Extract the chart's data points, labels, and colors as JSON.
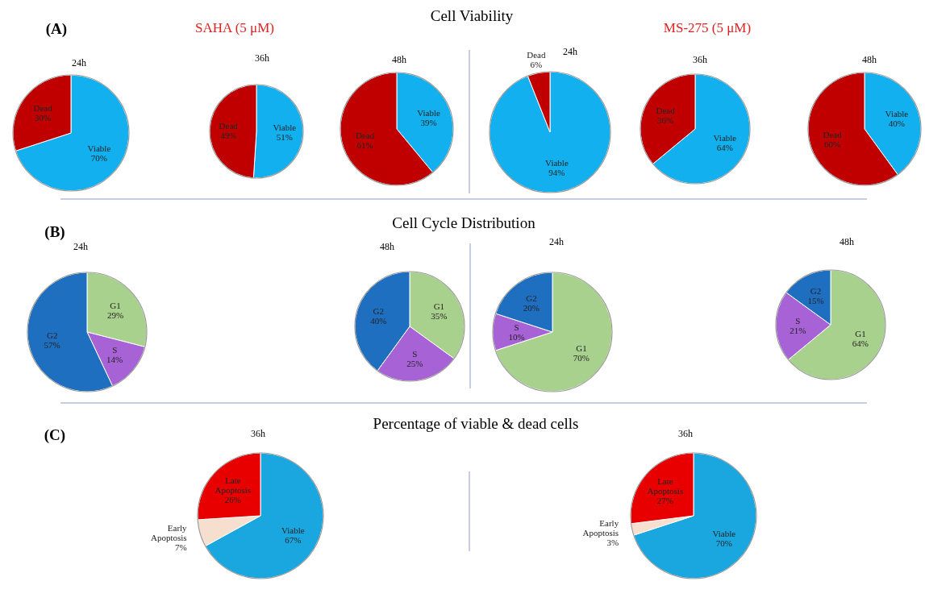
{
  "chart_data": [
    {
      "type": "pie",
      "title": "24h",
      "annotations": [
        "(A)",
        "SAHA (5 μM)",
        "Cell Viability"
      ],
      "categories": [
        "Viable",
        "Dead"
      ],
      "values": [
        70,
        30
      ],
      "value_labels": [
        "70%",
        "30%"
      ],
      "colors": [
        "#12b0ee",
        "#c00000"
      ]
    },
    {
      "type": "pie",
      "title": "36h",
      "categories": [
        "Viable",
        "Dead"
      ],
      "values": [
        51,
        49
      ],
      "value_labels": [
        "51%",
        "49%"
      ],
      "colors": [
        "#12b0ee",
        "#c00000"
      ]
    },
    {
      "type": "pie",
      "title": "48h",
      "categories": [
        "Viable",
        "Dead"
      ],
      "values": [
        39,
        61
      ],
      "value_labels": [
        "39%",
        "61%"
      ],
      "colors": [
        "#12b0ee",
        "#c00000"
      ]
    },
    {
      "type": "pie",
      "title": "24h",
      "annotations": [
        "MS-275 (5 μM)"
      ],
      "categories": [
        "Viable",
        "Dead"
      ],
      "values": [
        94,
        6
      ],
      "value_labels": [
        "94%",
        "6%"
      ],
      "colors": [
        "#12b0ee",
        "#c00000"
      ]
    },
    {
      "type": "pie",
      "title": "36h",
      "categories": [
        "Viable",
        "Dead"
      ],
      "values": [
        64,
        36
      ],
      "value_labels": [
        "64%",
        "36%"
      ],
      "colors": [
        "#12b0ee",
        "#c00000"
      ]
    },
    {
      "type": "pie",
      "title": "48h",
      "categories": [
        "Viable",
        "Dead"
      ],
      "values": [
        40,
        60
      ],
      "value_labels": [
        "40%",
        "60%"
      ],
      "colors": [
        "#12b0ee",
        "#c00000"
      ]
    },
    {
      "type": "pie",
      "title": "24h",
      "annotations": [
        "(B)",
        "Cell Cycle Distribution"
      ],
      "categories": [
        "G1",
        "S",
        "G2"
      ],
      "values": [
        29,
        14,
        57
      ],
      "value_labels": [
        "29%",
        "14%",
        "57%"
      ],
      "colors": [
        "#a9d18e",
        "#a763d6",
        "#1f6fc0"
      ]
    },
    {
      "type": "pie",
      "title": "48h",
      "categories": [
        "G1",
        "S",
        "G2"
      ],
      "values": [
        35,
        25,
        40
      ],
      "value_labels": [
        "35%",
        "25%",
        "40%"
      ],
      "colors": [
        "#a9d18e",
        "#a763d6",
        "#1f6fc0"
      ]
    },
    {
      "type": "pie",
      "title": "24h",
      "categories": [
        "G1",
        "S",
        "G2"
      ],
      "values": [
        70,
        10,
        20
      ],
      "value_labels": [
        "70%",
        "10%",
        "20%"
      ],
      "colors": [
        "#a9d18e",
        "#a763d6",
        "#1f6fc0"
      ]
    },
    {
      "type": "pie",
      "title": "48h",
      "categories": [
        "G1",
        "S",
        "G2"
      ],
      "values": [
        64,
        21,
        15
      ],
      "value_labels": [
        "64%",
        "21%",
        "15%"
      ],
      "colors": [
        "#a9d18e",
        "#a763d6",
        "#1f6fc0"
      ]
    },
    {
      "type": "pie",
      "title": "36h",
      "annotations": [
        "(C)",
        "Percentage of viable & dead cells"
      ],
      "categories": [
        "Viable",
        "Early Apoptosis",
        "Late Apoptosis"
      ],
      "values": [
        67,
        7,
        26
      ],
      "value_labels": [
        "67%",
        "7%",
        "26%"
      ],
      "colors": [
        "#1aa7e0",
        "#f6dfcf",
        "#e80000"
      ]
    },
    {
      "type": "pie",
      "title": "36h",
      "categories": [
        "Viable",
        "Early Apoptosis",
        "Late Apoptosis"
      ],
      "values": [
        70,
        3,
        27
      ],
      "value_labels": [
        "70%",
        "3%",
        "27%"
      ],
      "colors": [
        "#1aa7e0",
        "#f6dfcf",
        "#e80000"
      ]
    }
  ]
}
